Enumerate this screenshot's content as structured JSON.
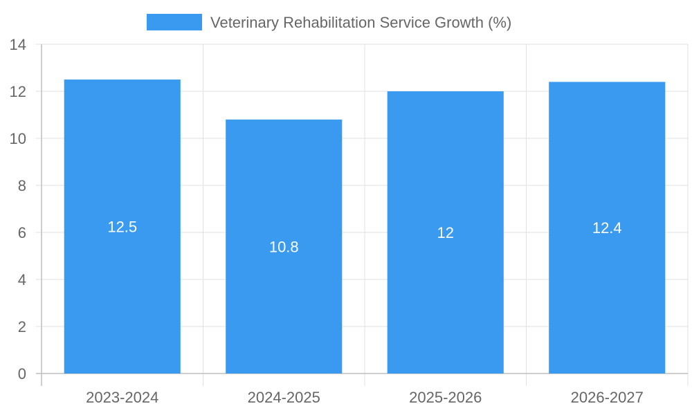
{
  "chart_data": {
    "type": "bar",
    "categories": [
      "2023-2024",
      "2024-2025",
      "2025-2026",
      "2026-2027"
    ],
    "series": [
      {
        "name": "Veterinary Rehabilitation Service Growth (%)",
        "values": [
          12.5,
          10.8,
          12,
          12.4
        ],
        "color": "#3a9aef"
      }
    ],
    "ylim": [
      0,
      14
    ],
    "yticks": [
      0,
      2,
      4,
      6,
      8,
      10,
      12,
      14
    ],
    "grid": true,
    "legend_position": "top-center",
    "data_labels": true
  },
  "colors": {
    "bar": "#3a9aef",
    "grid": "#e1e1e1",
    "axis": "#bdbdbd",
    "text": "#666666"
  }
}
